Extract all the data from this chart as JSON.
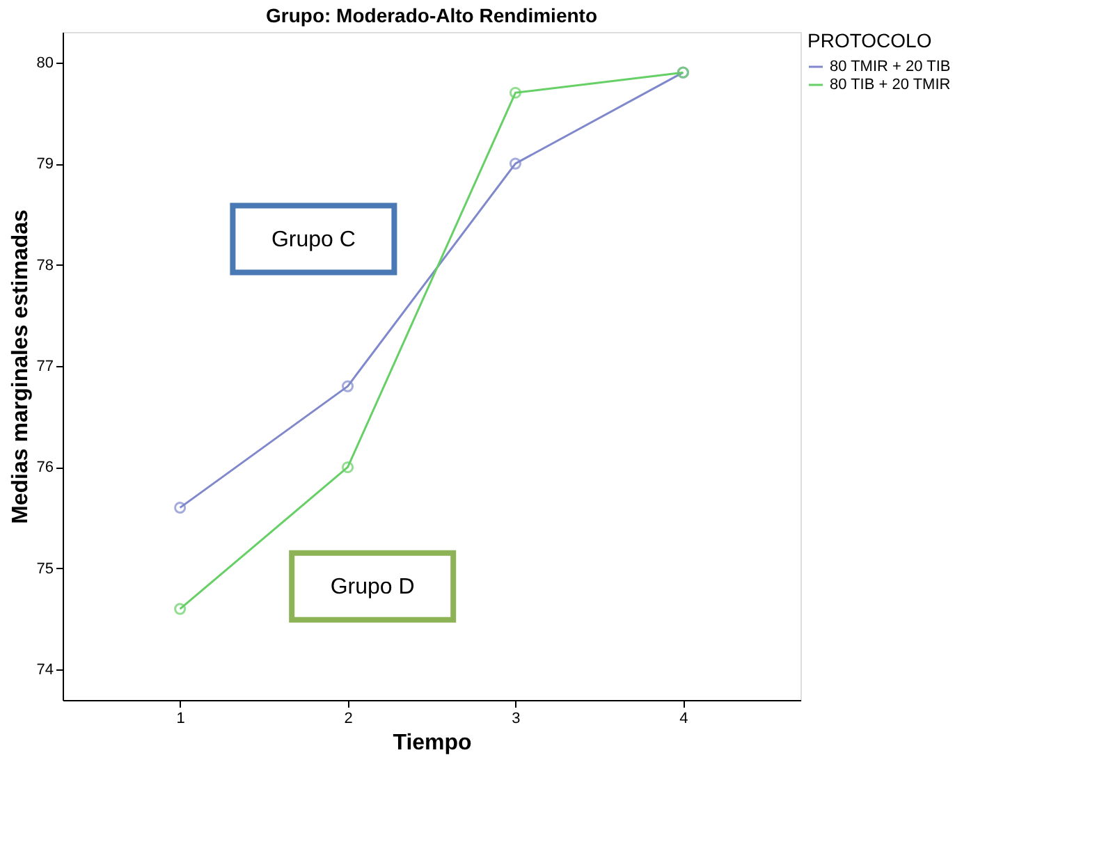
{
  "chart_data": {
    "type": "line",
    "title": "Grupo: Moderado-Alto Rendimiento",
    "xlabel": "Tiempo",
    "ylabel": "Medias marginales estimadas",
    "legend_title": "PROTOCOLO",
    "x": [
      1,
      2,
      3,
      4
    ],
    "series": [
      {
        "name": "80 TMIR + 20 TIB",
        "color": "#8088cc",
        "values": [
          75.6,
          76.8,
          79.0,
          79.9
        ]
      },
      {
        "name": "80 TIB + 20 TMIR",
        "color": "#66d066",
        "values": [
          74.6,
          76.0,
          79.7,
          79.9
        ]
      }
    ],
    "xlim": [
      0.3,
      4.7
    ],
    "xticks": [
      1,
      2,
      3,
      4
    ],
    "ylim": [
      73.7,
      80.3
    ],
    "yticks": [
      74,
      75,
      76,
      77,
      78,
      79,
      80
    ],
    "grid": false,
    "legend": "top right",
    "marker": "circle",
    "line_style": "solid",
    "annotations": [
      "Grupo C",
      "Grupo D"
    ]
  }
}
